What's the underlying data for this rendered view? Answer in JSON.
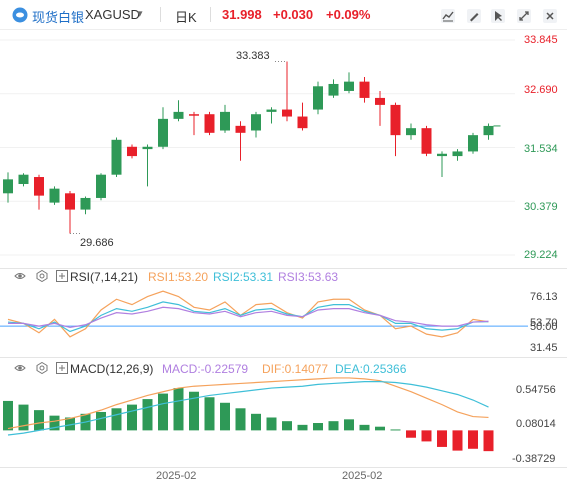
{
  "header": {
    "brand": "现货白银",
    "symbol": "XAGUSD",
    "period": "日K",
    "price": "31.998",
    "change": "+0.030",
    "change_pct": "+0.09%",
    "toolbar_icons": [
      "candlestick-chart-icon",
      "drawing-icon",
      "cursor-icon",
      "fullscreen-icon",
      "close-icon"
    ]
  },
  "colors": {
    "up": "#e8202a",
    "down": "#2e9957",
    "orange": "#f5a25c",
    "cyan": "#3fbfd8",
    "purple": "#b07fe0",
    "brand": "#3b8fe0"
  },
  "price_panel": {
    "y_ticks": [
      "33.845",
      "32.690",
      "31.534",
      "30.379",
      "29.224"
    ],
    "high_label": "33.383",
    "low_label": "29.686"
  },
  "rsi_panel": {
    "title": "RSI(7,14,21)",
    "rsi1": "RSI1:53.20",
    "rsi2": "RSI2:53.31",
    "rsi3": "RSI3:53.63",
    "y_ticks": [
      "76.13",
      "53.70",
      "50.00",
      "31.45"
    ]
  },
  "macd_panel": {
    "title": "MACD(12,26,9)",
    "macd": "MACD:-0.22579",
    "dif": "DIF:0.14077",
    "dea": "DEA:0.25366",
    "y_ticks": [
      "0.54756",
      "0.08014",
      "-0.38729"
    ]
  },
  "x_axis": {
    "labels": [
      "2025-02",
      "2025-02"
    ]
  },
  "chart_data": [
    {
      "type": "candlestick",
      "title": "XAGUSD 日K",
      "ylim": [
        29.224,
        33.845
      ],
      "candles": [
        {
          "o": 30.55,
          "c": 30.85,
          "h": 31.0,
          "l": 30.35,
          "dir": "down"
        },
        {
          "o": 30.75,
          "c": 30.95,
          "h": 30.98,
          "l": 30.7,
          "dir": "down"
        },
        {
          "o": 30.9,
          "c": 30.5,
          "h": 30.95,
          "l": 30.2,
          "dir": "up"
        },
        {
          "o": 30.35,
          "c": 30.65,
          "h": 30.7,
          "l": 30.3,
          "dir": "down"
        },
        {
          "o": 30.55,
          "c": 30.2,
          "h": 30.6,
          "l": 29.686,
          "dir": "up"
        },
        {
          "o": 30.2,
          "c": 30.45,
          "h": 30.48,
          "l": 30.1,
          "dir": "down"
        },
        {
          "o": 30.45,
          "c": 30.95,
          "h": 30.98,
          "l": 30.4,
          "dir": "down"
        },
        {
          "o": 30.95,
          "c": 31.7,
          "h": 31.75,
          "l": 30.9,
          "dir": "down"
        },
        {
          "o": 31.55,
          "c": 31.35,
          "h": 31.6,
          "l": 31.3,
          "dir": "up"
        },
        {
          "o": 31.5,
          "c": 31.55,
          "h": 31.6,
          "l": 30.7,
          "dir": "down"
        },
        {
          "o": 31.55,
          "c": 32.15,
          "h": 32.4,
          "l": 31.5,
          "dir": "down"
        },
        {
          "o": 32.15,
          "c": 32.3,
          "h": 32.55,
          "l": 32.1,
          "dir": "down"
        },
        {
          "o": 32.25,
          "c": 32.25,
          "h": 32.3,
          "l": 31.8,
          "dir": "up"
        },
        {
          "o": 32.25,
          "c": 31.85,
          "h": 32.3,
          "l": 31.8,
          "dir": "up"
        },
        {
          "o": 31.9,
          "c": 32.3,
          "h": 32.45,
          "l": 31.85,
          "dir": "down"
        },
        {
          "o": 32.0,
          "c": 31.85,
          "h": 32.1,
          "l": 31.25,
          "dir": "up"
        },
        {
          "o": 31.9,
          "c": 32.25,
          "h": 32.3,
          "l": 31.75,
          "dir": "down"
        },
        {
          "o": 32.3,
          "c": 32.35,
          "h": 32.4,
          "l": 32.05,
          "dir": "down"
        },
        {
          "o": 32.35,
          "c": 32.2,
          "h": 33.383,
          "l": 32.1,
          "dir": "up"
        },
        {
          "o": 32.2,
          "c": 31.95,
          "h": 32.5,
          "l": 31.9,
          "dir": "up"
        },
        {
          "o": 32.35,
          "c": 32.85,
          "h": 32.95,
          "l": 32.25,
          "dir": "down"
        },
        {
          "o": 32.65,
          "c": 32.9,
          "h": 33.0,
          "l": 32.6,
          "dir": "down"
        },
        {
          "o": 32.75,
          "c": 32.95,
          "h": 33.15,
          "l": 32.7,
          "dir": "down"
        },
        {
          "o": 32.95,
          "c": 32.6,
          "h": 33.05,
          "l": 32.5,
          "dir": "up"
        },
        {
          "o": 32.6,
          "c": 32.45,
          "h": 32.75,
          "l": 32.0,
          "dir": "up"
        },
        {
          "o": 32.45,
          "c": 31.8,
          "h": 32.5,
          "l": 31.35,
          "dir": "up"
        },
        {
          "o": 31.8,
          "c": 31.95,
          "h": 32.05,
          "l": 31.7,
          "dir": "down"
        },
        {
          "o": 31.95,
          "c": 31.4,
          "h": 32.0,
          "l": 31.35,
          "dir": "up"
        },
        {
          "o": 31.4,
          "c": 31.35,
          "h": 31.45,
          "l": 30.9,
          "dir": "down"
        },
        {
          "o": 31.35,
          "c": 31.45,
          "h": 31.5,
          "l": 31.25,
          "dir": "down"
        },
        {
          "o": 31.45,
          "c": 31.8,
          "h": 31.85,
          "l": 31.4,
          "dir": "down"
        },
        {
          "o": 31.8,
          "c": 31.998,
          "h": 32.05,
          "l": 31.7,
          "dir": "down"
        }
      ]
    },
    {
      "type": "line",
      "title": "RSI(7,14,21)",
      "ylim": [
        31.45,
        76.13
      ],
      "series": [
        {
          "name": "RSI1",
          "color": "#f5a25c",
          "values": [
            55,
            52,
            45,
            55,
            42,
            48,
            62,
            70,
            66,
            72,
            76,
            72,
            64,
            62,
            68,
            58,
            66,
            67,
            60,
            56,
            68,
            70,
            70,
            62,
            58,
            48,
            50,
            44,
            42,
            45,
            55,
            53.2
          ]
        },
        {
          "name": "RSI2",
          "color": "#3fbfd8",
          "values": [
            53,
            52,
            48,
            53,
            46,
            50,
            58,
            63,
            61,
            64,
            68,
            66,
            61,
            60,
            63,
            58,
            62,
            63,
            59,
            57,
            64,
            66,
            66,
            61,
            58,
            52,
            52,
            48,
            47,
            48,
            53,
            53.31
          ]
        },
        {
          "name": "RSI3",
          "color": "#b07fe0",
          "values": [
            52,
            52,
            50,
            52,
            49,
            51,
            56,
            60,
            59,
            61,
            64,
            63,
            60,
            59,
            61,
            57,
            60,
            61,
            58,
            57,
            62,
            63,
            63,
            60,
            58,
            54,
            53,
            51,
            50,
            50,
            53,
            53.63
          ]
        }
      ]
    },
    {
      "type": "bar",
      "title": "MACD(12,26,9)",
      "ylim": [
        -0.38729,
        0.54756
      ],
      "macd": [
        0.32,
        0.28,
        0.22,
        0.16,
        0.14,
        0.18,
        0.2,
        0.24,
        0.28,
        0.34,
        0.4,
        0.46,
        0.42,
        0.36,
        0.3,
        0.24,
        0.18,
        0.14,
        0.1,
        0.06,
        0.08,
        0.1,
        0.12,
        0.06,
        0.04,
        0.01,
        -0.08,
        -0.12,
        -0.18,
        -0.22,
        -0.2,
        -0.22579
      ],
      "dif": [
        0.02,
        0.05,
        0.08,
        0.1,
        0.13,
        0.17,
        0.22,
        0.28,
        0.33,
        0.38,
        0.42,
        0.46,
        0.48,
        0.49,
        0.5,
        0.51,
        0.52,
        0.53,
        0.54,
        0.55,
        0.56,
        0.57,
        0.57,
        0.56,
        0.54,
        0.48,
        0.42,
        0.35,
        0.28,
        0.2,
        0.15,
        0.14077
      ],
      "dea": [
        -0.05,
        -0.03,
        0.0,
        0.03,
        0.06,
        0.09,
        0.13,
        0.17,
        0.21,
        0.25,
        0.29,
        0.32,
        0.35,
        0.38,
        0.4,
        0.42,
        0.44,
        0.46,
        0.47,
        0.48,
        0.5,
        0.51,
        0.52,
        0.53,
        0.53,
        0.52,
        0.5,
        0.47,
        0.43,
        0.39,
        0.33,
        0.25366
      ]
    }
  ]
}
